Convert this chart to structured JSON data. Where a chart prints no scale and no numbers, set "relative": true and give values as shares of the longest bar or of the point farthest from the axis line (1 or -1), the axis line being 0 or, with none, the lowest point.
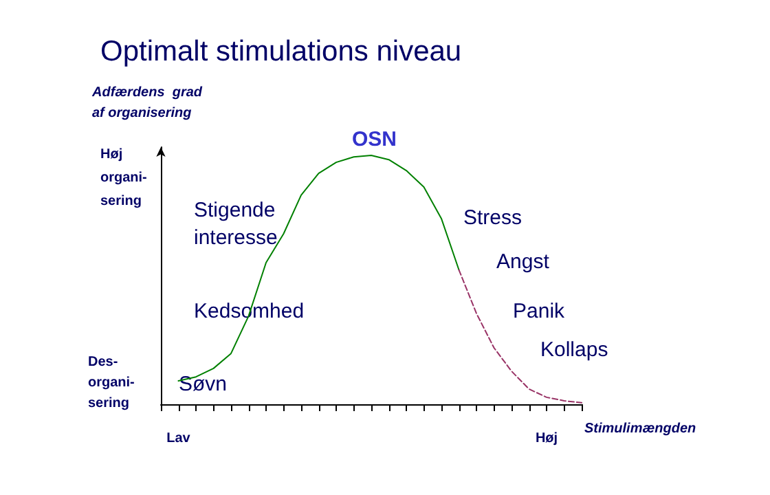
{
  "chart_data": {
    "type": "line",
    "title": "Optimalt stimulations niveau",
    "ylabel": "Adfærdens  grad\naf organisering",
    "xlabel": "Stimulimængden",
    "relative": true,
    "marker": "none",
    "grid": false,
    "categories": [
      null,
      "Lav",
      null,
      null,
      null,
      null,
      null,
      null,
      null,
      null,
      null,
      null,
      null,
      null,
      null,
      null,
      null,
      null,
      null,
      null,
      null,
      null,
      "Høj",
      null,
      null
    ],
    "series": [
      {
        "color": "#008000",
        "line_style": "solid",
        "values": [
          null,
          0.094,
          0.11,
          0.144,
          0.204,
          0.354,
          0.569,
          0.685,
          0.84,
          0.928,
          0.972,
          0.994,
          1,
          0.983,
          0.939,
          0.873,
          0.746,
          0.54,
          null,
          null,
          null,
          null,
          null,
          null,
          null
        ]
      },
      {
        "color": "#993366",
        "line_style": "dashed",
        "values": [
          null,
          null,
          null,
          null,
          null,
          null,
          null,
          null,
          null,
          null,
          null,
          null,
          null,
          null,
          null,
          null,
          null,
          0.54,
          0.365,
          0.227,
          0.133,
          0.061,
          0.028,
          0.014,
          0.006
        ]
      }
    ],
    "annotations": [
      "Høj\norgani-\nsering",
      "Des-\norgani-\nsering",
      "Stigende\ninteresse",
      "Kedsomhed",
      "Søvn",
      "OSN",
      "Stress",
      "Angst",
      "Panik",
      "Kollaps"
    ]
  }
}
